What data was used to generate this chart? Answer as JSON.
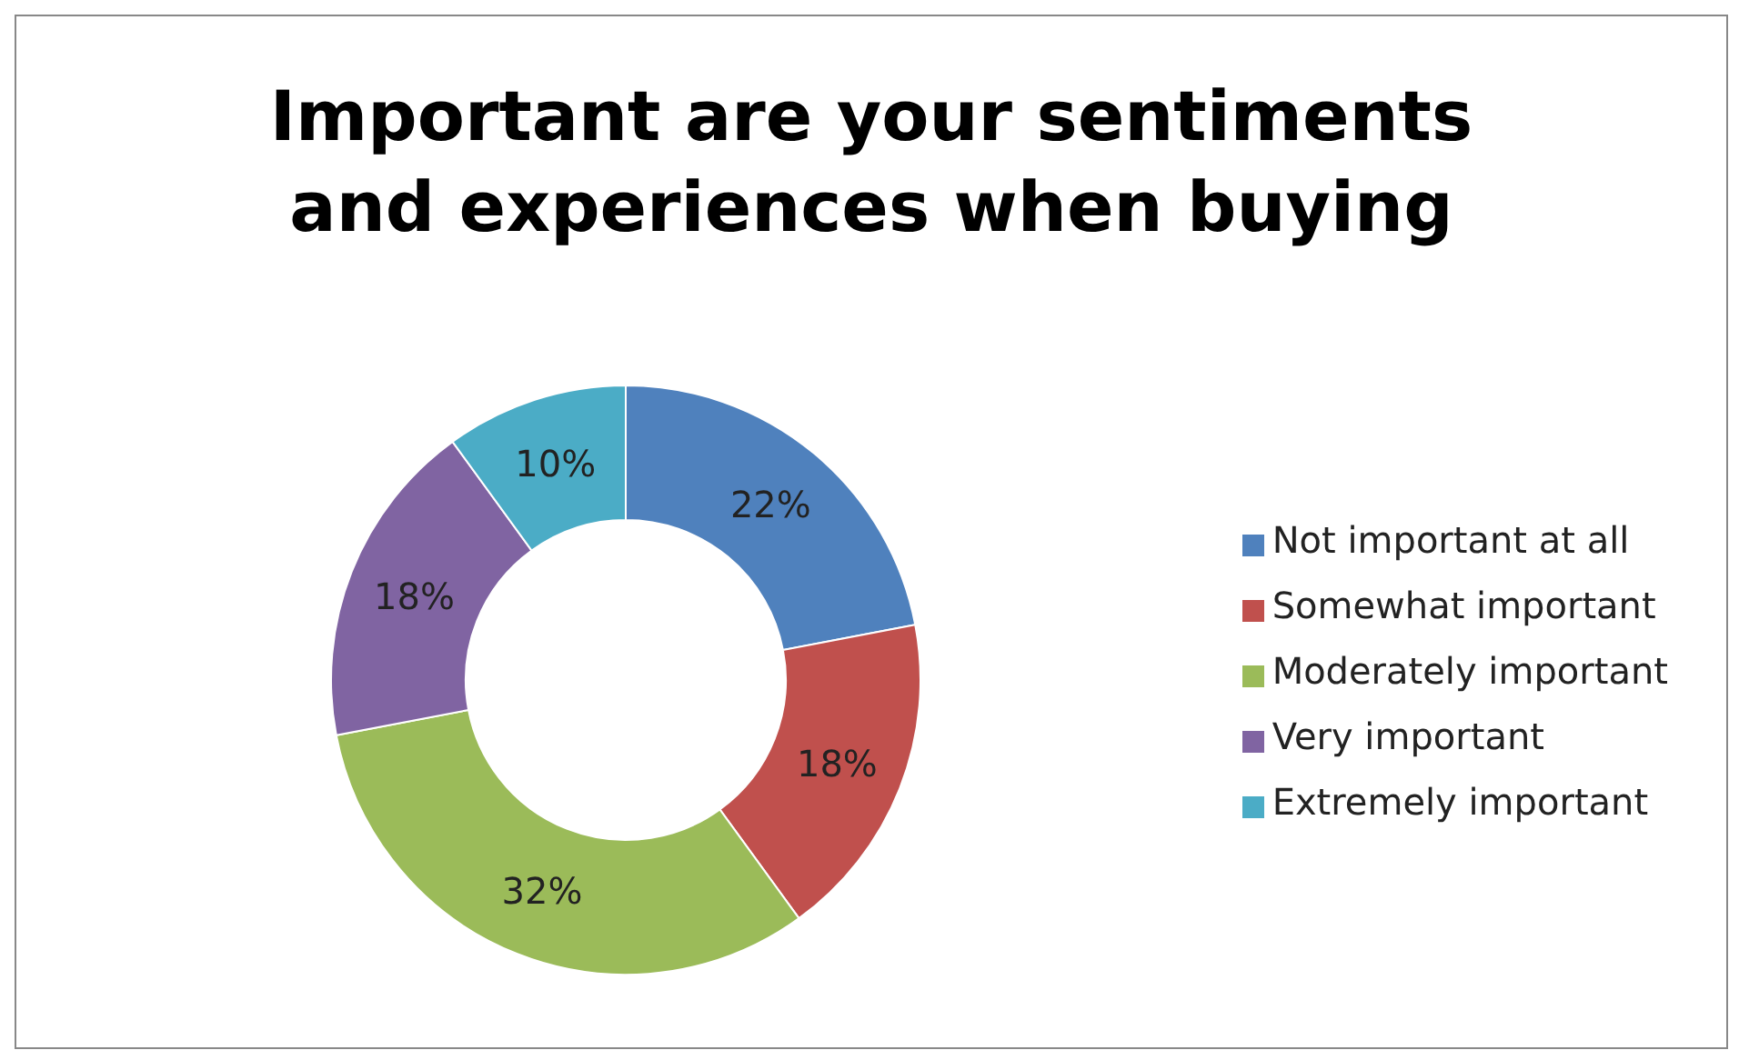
{
  "chart_data": {
    "type": "donut",
    "title": "Important are your sentiments and experiences when buying",
    "categories": [
      "Not important at all",
      "Somewhat important",
      "Moderately important",
      "Very important",
      "Extremely important"
    ],
    "values": [
      22,
      18,
      32,
      18,
      10
    ],
    "value_labels": [
      "22%",
      "18%",
      "32%",
      "18%",
      "10%"
    ],
    "colors": [
      "#4f81bd",
      "#c0504d",
      "#9bbb59",
      "#8064a2",
      "#4bacc6"
    ],
    "legend": "right"
  }
}
